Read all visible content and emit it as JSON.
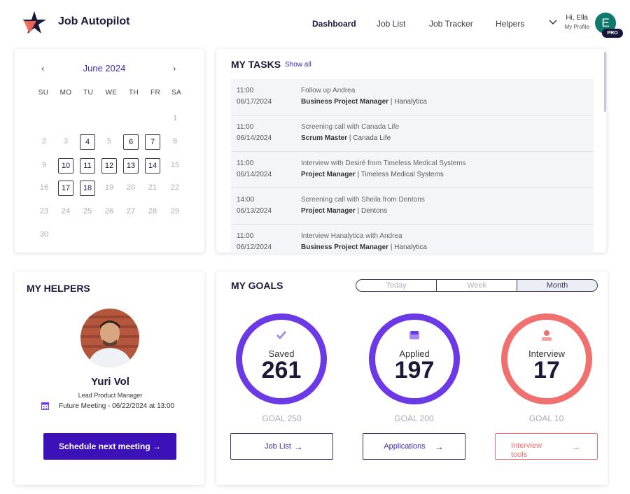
{
  "header": {
    "brand": "Job Autopilot",
    "nav": [
      "Dashboard",
      "Job List",
      "Job Tracker",
      "Helpers"
    ],
    "greeting": "Hi, Ella",
    "profile": "My Profile",
    "avatar_initial": "E",
    "badge": "PRO"
  },
  "calendar": {
    "month": "June 2024",
    "prev": "‹",
    "next": "›",
    "weekdays": [
      "SU",
      "MO",
      "TU",
      "WE",
      "TH",
      "FR",
      "SA"
    ],
    "days": [
      "1",
      "2",
      "3",
      "4",
      "5",
      "6",
      "7",
      "8",
      "9",
      "10",
      "11",
      "12",
      "13",
      "14",
      "15",
      "16",
      "17",
      "18",
      "19",
      "20",
      "21",
      "22",
      "23",
      "24",
      "25",
      "26",
      "27",
      "28",
      "29",
      "30"
    ],
    "marked_days": [
      4,
      6,
      7,
      10,
      11,
      12,
      13,
      14,
      17,
      18
    ]
  },
  "tasks": {
    "title": "MY TASKS",
    "show_all": "Show all",
    "items": [
      {
        "time": "11:00",
        "date": "06/17/2024",
        "title": "Follow up Andrea",
        "role": "Business Project Manager",
        "company": "Hanalytica"
      },
      {
        "time": "11:00",
        "date": "06/14/2024",
        "title": "Screening call with Canada Life",
        "role": "Scrum Master",
        "company": "Canada Life"
      },
      {
        "time": "11:00",
        "date": "06/14/2024",
        "title": "Interview with Desiré from Timeless Medical Systems",
        "role": "Project Manager",
        "company": "Timeless Medical Systems"
      },
      {
        "time": "14:00",
        "date": "06/13/2024",
        "title": "Screening call with Sheila from Dentons",
        "role": "Project Manager",
        "company": "Dentons"
      },
      {
        "time": "11:00",
        "date": "06/12/2024",
        "title": "Interview Hanalytica with Andrea",
        "role": "Business Project Manager",
        "company": "Hanalytica"
      }
    ]
  },
  "helpers": {
    "title": "MY HELPERS",
    "name": "Yuri Vol",
    "role": "Lead Product Manager",
    "meeting": "Future Meeting - 06/22/2024 at 13:00",
    "button": "Schedule next meeting  →"
  },
  "goals": {
    "title": "MY GOALS",
    "periods": [
      "Today",
      "Week",
      "Month"
    ],
    "active_period": "Month",
    "items": [
      {
        "label": "Saved",
        "value": "261",
        "goal": "GOAL 250",
        "button": "Job List",
        "color": "#6b39e6"
      },
      {
        "label": "Applied",
        "value": "197",
        "goal": "GOAL 200",
        "button": "Applications",
        "color": "#6b39e6"
      },
      {
        "label": "Interview",
        "value": "17",
        "goal": "GOAL 10",
        "button": "Interview tools",
        "color": "#f07070"
      }
    ],
    "arrow": "→"
  },
  "colors": {
    "accent": "#3d11b8",
    "primary_ring": "#6b39e6",
    "alert_ring": "#f07070"
  }
}
